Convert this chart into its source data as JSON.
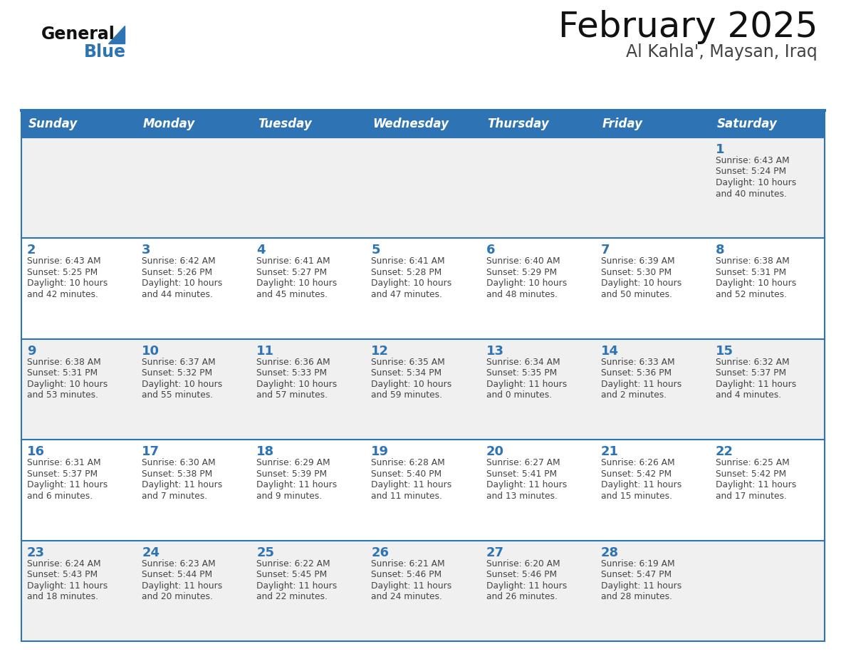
{
  "title": "February 2025",
  "subtitle": "Al Kahla', Maysan, Iraq",
  "days_of_week": [
    "Sunday",
    "Monday",
    "Tuesday",
    "Wednesday",
    "Thursday",
    "Friday",
    "Saturday"
  ],
  "header_bg": "#2E74B5",
  "header_text": "#FFFFFF",
  "cell_bg_white": "#FFFFFF",
  "cell_bg_gray": "#F0F0F0",
  "border_color": "#2E74B5",
  "day_num_color": "#2E74B5",
  "text_color": "#444444",
  "title_color": "#111111",
  "subtitle_color": "#444444",
  "logo_general_color": "#111111",
  "logo_blue_color": "#2E74B5",
  "calendar_data": [
    [
      {
        "day": null,
        "info": ""
      },
      {
        "day": null,
        "info": ""
      },
      {
        "day": null,
        "info": ""
      },
      {
        "day": null,
        "info": ""
      },
      {
        "day": null,
        "info": ""
      },
      {
        "day": null,
        "info": ""
      },
      {
        "day": 1,
        "info": "Sunrise: 6:43 AM\nSunset: 5:24 PM\nDaylight: 10 hours\nand 40 minutes."
      }
    ],
    [
      {
        "day": 2,
        "info": "Sunrise: 6:43 AM\nSunset: 5:25 PM\nDaylight: 10 hours\nand 42 minutes."
      },
      {
        "day": 3,
        "info": "Sunrise: 6:42 AM\nSunset: 5:26 PM\nDaylight: 10 hours\nand 44 minutes."
      },
      {
        "day": 4,
        "info": "Sunrise: 6:41 AM\nSunset: 5:27 PM\nDaylight: 10 hours\nand 45 minutes."
      },
      {
        "day": 5,
        "info": "Sunrise: 6:41 AM\nSunset: 5:28 PM\nDaylight: 10 hours\nand 47 minutes."
      },
      {
        "day": 6,
        "info": "Sunrise: 6:40 AM\nSunset: 5:29 PM\nDaylight: 10 hours\nand 48 minutes."
      },
      {
        "day": 7,
        "info": "Sunrise: 6:39 AM\nSunset: 5:30 PM\nDaylight: 10 hours\nand 50 minutes."
      },
      {
        "day": 8,
        "info": "Sunrise: 6:38 AM\nSunset: 5:31 PM\nDaylight: 10 hours\nand 52 minutes."
      }
    ],
    [
      {
        "day": 9,
        "info": "Sunrise: 6:38 AM\nSunset: 5:31 PM\nDaylight: 10 hours\nand 53 minutes."
      },
      {
        "day": 10,
        "info": "Sunrise: 6:37 AM\nSunset: 5:32 PM\nDaylight: 10 hours\nand 55 minutes."
      },
      {
        "day": 11,
        "info": "Sunrise: 6:36 AM\nSunset: 5:33 PM\nDaylight: 10 hours\nand 57 minutes."
      },
      {
        "day": 12,
        "info": "Sunrise: 6:35 AM\nSunset: 5:34 PM\nDaylight: 10 hours\nand 59 minutes."
      },
      {
        "day": 13,
        "info": "Sunrise: 6:34 AM\nSunset: 5:35 PM\nDaylight: 11 hours\nand 0 minutes."
      },
      {
        "day": 14,
        "info": "Sunrise: 6:33 AM\nSunset: 5:36 PM\nDaylight: 11 hours\nand 2 minutes."
      },
      {
        "day": 15,
        "info": "Sunrise: 6:32 AM\nSunset: 5:37 PM\nDaylight: 11 hours\nand 4 minutes."
      }
    ],
    [
      {
        "day": 16,
        "info": "Sunrise: 6:31 AM\nSunset: 5:37 PM\nDaylight: 11 hours\nand 6 minutes."
      },
      {
        "day": 17,
        "info": "Sunrise: 6:30 AM\nSunset: 5:38 PM\nDaylight: 11 hours\nand 7 minutes."
      },
      {
        "day": 18,
        "info": "Sunrise: 6:29 AM\nSunset: 5:39 PM\nDaylight: 11 hours\nand 9 minutes."
      },
      {
        "day": 19,
        "info": "Sunrise: 6:28 AM\nSunset: 5:40 PM\nDaylight: 11 hours\nand 11 minutes."
      },
      {
        "day": 20,
        "info": "Sunrise: 6:27 AM\nSunset: 5:41 PM\nDaylight: 11 hours\nand 13 minutes."
      },
      {
        "day": 21,
        "info": "Sunrise: 6:26 AM\nSunset: 5:42 PM\nDaylight: 11 hours\nand 15 minutes."
      },
      {
        "day": 22,
        "info": "Sunrise: 6:25 AM\nSunset: 5:42 PM\nDaylight: 11 hours\nand 17 minutes."
      }
    ],
    [
      {
        "day": 23,
        "info": "Sunrise: 6:24 AM\nSunset: 5:43 PM\nDaylight: 11 hours\nand 18 minutes."
      },
      {
        "day": 24,
        "info": "Sunrise: 6:23 AM\nSunset: 5:44 PM\nDaylight: 11 hours\nand 20 minutes."
      },
      {
        "day": 25,
        "info": "Sunrise: 6:22 AM\nSunset: 5:45 PM\nDaylight: 11 hours\nand 22 minutes."
      },
      {
        "day": 26,
        "info": "Sunrise: 6:21 AM\nSunset: 5:46 PM\nDaylight: 11 hours\nand 24 minutes."
      },
      {
        "day": 27,
        "info": "Sunrise: 6:20 AM\nSunset: 5:46 PM\nDaylight: 11 hours\nand 26 minutes."
      },
      {
        "day": 28,
        "info": "Sunrise: 6:19 AM\nSunset: 5:47 PM\nDaylight: 11 hours\nand 28 minutes."
      },
      {
        "day": null,
        "info": ""
      }
    ]
  ]
}
